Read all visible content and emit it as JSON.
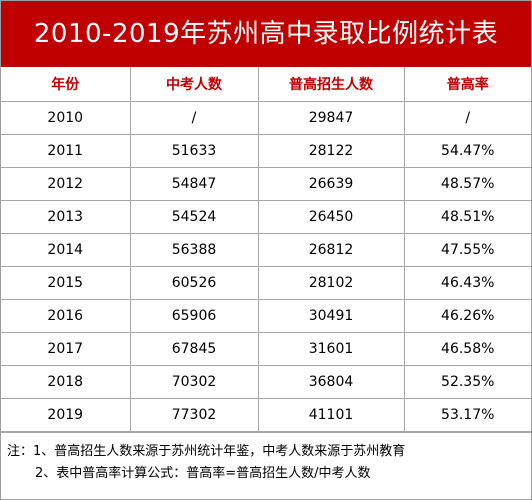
{
  "title": "2010-2019年苏州高中录取比例统计表",
  "colors": {
    "title_background": "#c00000",
    "header_text": "#c00000"
  },
  "table": {
    "headers": [
      "年份",
      "中考人数",
      "普高招生人数",
      "普高率"
    ],
    "rows": [
      [
        "2010",
        "/",
        "29847",
        "/"
      ],
      [
        "2011",
        "51633",
        "28122",
        "54.47%"
      ],
      [
        "2012",
        "54847",
        "26639",
        "48.57%"
      ],
      [
        "2013",
        "54524",
        "26450",
        "48.51%"
      ],
      [
        "2014",
        "56388",
        "26812",
        "47.55%"
      ],
      [
        "2015",
        "60526",
        "28102",
        "46.43%"
      ],
      [
        "2016",
        "65906",
        "30491",
        "46.26%"
      ],
      [
        "2017",
        "67845",
        "31601",
        "46.58%"
      ],
      [
        "2018",
        "70302",
        "36804",
        "52.35%"
      ],
      [
        "2019",
        "77302",
        "41101",
        "53.17%"
      ]
    ]
  },
  "notes": {
    "line1": "注：1、普高招生人数来源于苏州统计年鉴，中考人数来源于苏州教育",
    "line2": "2、表中普高率计算公式：普高率=普高招生人数/中考人数"
  }
}
